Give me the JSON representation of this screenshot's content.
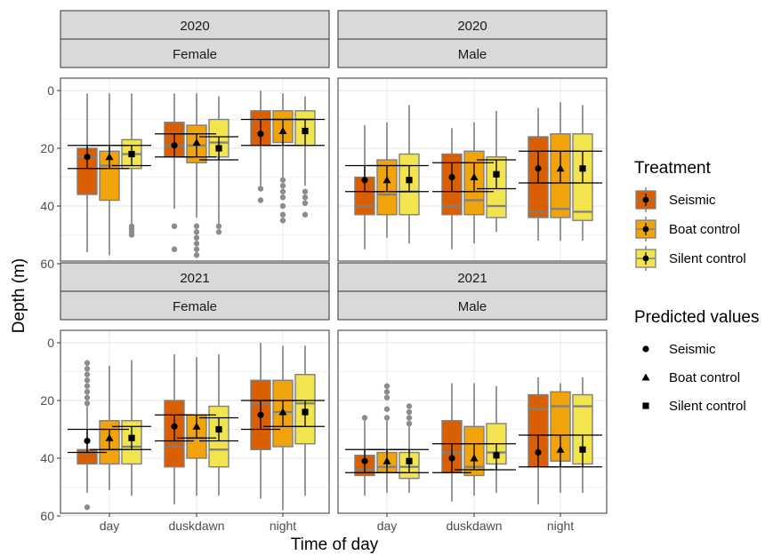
{
  "chart_data": {
    "type": "boxplot",
    "xlabel": "Time of day",
    "ylabel": "Depth (m)",
    "ylim": [
      0,
      60
    ],
    "y_reversed": true,
    "yticks": [
      0,
      20,
      40,
      60
    ],
    "categories": [
      "day",
      "duskdawn",
      "night"
    ],
    "grid": true,
    "treatments": [
      "Seismic",
      "Boat control",
      "Silent control"
    ],
    "colors": {
      "Seismic": "#D95F02",
      "Boat control": "#F0A30A",
      "Silent control": "#F2E44E"
    },
    "legend": {
      "treatment_title": "Treatment",
      "predicted_title": "Predicted values",
      "position": "right"
    },
    "predicted_markers": {
      "Seismic": "circle",
      "Boat control": "triangle",
      "Silent control": "square"
    },
    "panels": [
      {
        "year": "2020",
        "sex": "Female",
        "boxes": [
          [
            {
              "wlo": 1,
              "q1": 20,
              "med": 23,
              "q3": 36,
              "whi": 56,
              "out": []
            },
            {
              "wlo": 1,
              "q1": 21,
              "med": 26,
              "q3": 38,
              "whi": 57,
              "out": []
            },
            {
              "wlo": 1,
              "q1": 17,
              "med": 22,
              "q3": 27,
              "whi": 46,
              "out": [
                47,
                48,
                49,
                50
              ]
            }
          ],
          [
            {
              "wlo": 1,
              "q1": 11,
              "med": 19,
              "q3": 23,
              "whi": 41,
              "out": [
                47,
                55
              ]
            },
            {
              "wlo": 1,
              "q1": 12,
              "med": 19,
              "q3": 25,
              "whi": 44,
              "out": [
                47,
                49,
                51,
                53,
                55,
                57
              ]
            },
            {
              "wlo": 2,
              "q1": 10,
              "med": 18,
              "q3": 23,
              "whi": 46,
              "out": [
                47,
                49
              ]
            }
          ],
          [
            {
              "wlo": 0,
              "q1": 7,
              "med": 10,
              "q3": 19,
              "whi": 33,
              "out": [
                34,
                38
              ]
            },
            {
              "wlo": 1,
              "q1": 7,
              "med": 10,
              "q3": 18,
              "whi": 30,
              "out": [
                31,
                33,
                35,
                37,
                40,
                43,
                45
              ]
            },
            {
              "wlo": 2,
              "q1": 7,
              "med": 10,
              "q3": 19,
              "whi": 33,
              "out": [
                35,
                37,
                39,
                43
              ]
            }
          ]
        ],
        "predicted": [
          {
            "mean": [
              23,
              23,
              22
            ],
            "lo": [
              19,
              19,
              19
            ],
            "hi": [
              27,
              27,
              26
            ]
          },
          {
            "mean": [
              19,
              18,
              20
            ],
            "lo": [
              15,
              15,
              16
            ],
            "hi": [
              23,
              23,
              24
            ]
          },
          {
            "mean": [
              15,
              14,
              14
            ],
            "lo": [
              10,
              10,
              10
            ],
            "hi": [
              19,
              19,
              19
            ]
          }
        ]
      },
      {
        "year": "2020",
        "sex": "Male",
        "boxes": [
          [
            {
              "wlo": 12,
              "q1": 30,
              "med": 40,
              "q3": 43,
              "whi": 55,
              "out": []
            },
            {
              "wlo": 11,
              "q1": 24,
              "med": 36,
              "q3": 43,
              "whi": 51,
              "out": []
            },
            {
              "wlo": 5,
              "q1": 22,
              "med": 35,
              "q3": 43,
              "whi": 53,
              "out": []
            }
          ],
          [
            {
              "wlo": 13,
              "q1": 22,
              "med": 40,
              "q3": 43,
              "whi": 55,
              "out": []
            },
            {
              "wlo": 11,
              "q1": 21,
              "med": 38,
              "q3": 43,
              "whi": 53,
              "out": []
            },
            {
              "wlo": 7,
              "q1": 23,
              "med": 40,
              "q3": 44,
              "whi": 49,
              "out": []
            }
          ],
          [
            {
              "wlo": 6,
              "q1": 16,
              "med": 42,
              "q3": 44,
              "whi": 52,
              "out": []
            },
            {
              "wlo": 4,
              "q1": 15,
              "med": 41,
              "q3": 44,
              "whi": 52,
              "out": []
            },
            {
              "wlo": 5,
              "q1": 15,
              "med": 42,
              "q3": 45,
              "whi": 52,
              "out": []
            }
          ]
        ],
        "predicted": [
          {
            "mean": [
              31,
              31,
              31
            ],
            "lo": [
              26,
              26,
              26
            ],
            "hi": [
              35,
              35,
              35
            ]
          },
          {
            "mean": [
              30,
              30,
              29
            ],
            "lo": [
              25,
              25,
              24
            ],
            "hi": [
              35,
              35,
              34
            ]
          },
          {
            "mean": [
              27,
              27,
              27
            ],
            "lo": [
              21,
              21,
              21
            ],
            "hi": [
              32,
              32,
              32
            ]
          }
        ]
      },
      {
        "year": "2021",
        "sex": "Female",
        "boxes": [
          [
            {
              "wlo": 21,
              "q1": 37,
              "med": 38,
              "q3": 42,
              "whi": 52,
              "out": [
                7,
                9,
                11,
                13,
                15,
                17,
                19,
                21,
                57
              ]
            },
            {
              "wlo": 8,
              "q1": 27,
              "med": 37,
              "q3": 42,
              "whi": 51,
              "out": []
            },
            {
              "wlo": 6,
              "q1": 27,
              "med": 36,
              "q3": 42,
              "whi": 53,
              "out": []
            }
          ],
          [
            {
              "wlo": 4,
              "q1": 20,
              "med": 36,
              "q3": 43,
              "whi": 56,
              "out": []
            },
            {
              "wlo": 5,
              "q1": 25,
              "med": 33,
              "q3": 40,
              "whi": 53,
              "out": []
            },
            {
              "wlo": 4,
              "q1": 22,
              "med": 37,
              "q3": 43,
              "whi": 53,
              "out": []
            }
          ],
          [
            {
              "wlo": 0,
              "q1": 13,
              "med": 21,
              "q3": 37,
              "whi": 54,
              "out": []
            },
            {
              "wlo": 1,
              "q1": 13,
              "med": 24,
              "q3": 36,
              "whi": 58,
              "out": []
            },
            {
              "wlo": 1,
              "q1": 11,
              "med": 21,
              "q3": 35,
              "whi": 53,
              "out": []
            }
          ]
        ],
        "predicted": [
          {
            "mean": [
              34,
              33,
              33
            ],
            "lo": [
              30,
              30,
              29
            ],
            "hi": [
              38,
              37,
              37
            ]
          },
          {
            "mean": [
              29,
              29,
              30
            ],
            "lo": [
              25,
              25,
              26
            ],
            "hi": [
              34,
              33,
              34
            ]
          },
          {
            "mean": [
              25,
              24,
              24
            ],
            "lo": [
              20,
              20,
              20
            ],
            "hi": [
              30,
              29,
              29
            ]
          }
        ]
      },
      {
        "year": "2021",
        "sex": "Male",
        "boxes": [
          [
            {
              "wlo": 26,
              "q1": 39,
              "med": 44,
              "q3": 46,
              "whi": 53,
              "out": [
                26
              ]
            },
            {
              "wlo": 27,
              "q1": 38,
              "med": 43,
              "q3": 45,
              "whi": 52,
              "out": [
                15,
                17,
                19,
                23,
                26
              ]
            },
            {
              "wlo": 28,
              "q1": 38,
              "med": 43,
              "q3": 47,
              "whi": 52,
              "out": [
                22,
                24,
                26,
                28
              ]
            }
          ],
          [
            {
              "wlo": 14,
              "q1": 27,
              "med": 38,
              "q3": 45,
              "whi": 55,
              "out": []
            },
            {
              "wlo": 14,
              "q1": 29,
              "med": 43,
              "q3": 46,
              "whi": 53,
              "out": []
            },
            {
              "wlo": 15,
              "q1": 28,
              "med": 38,
              "q3": 42,
              "whi": 52,
              "out": []
            }
          ],
          [
            {
              "wlo": 12,
              "q1": 18,
              "med": 23,
              "q3": 43,
              "whi": 56,
              "out": []
            },
            {
              "wlo": 14,
              "q1": 17,
              "med": 22,
              "q3": 41,
              "whi": 52,
              "out": []
            },
            {
              "wlo": 12,
              "q1": 18,
              "med": 22,
              "q3": 42,
              "whi": 52,
              "out": []
            }
          ]
        ],
        "predicted": [
          {
            "mean": [
              41,
              41,
              41
            ],
            "lo": [
              37,
              37,
              37
            ],
            "hi": [
              45,
              45,
              45
            ]
          },
          {
            "mean": [
              40,
              40,
              39
            ],
            "lo": [
              35,
              35,
              35
            ],
            "hi": [
              45,
              44,
              44
            ]
          },
          {
            "mean": [
              38,
              37,
              37
            ],
            "lo": [
              32,
              32,
              32
            ],
            "hi": [
              43,
              43,
              43
            ]
          }
        ]
      }
    ]
  }
}
